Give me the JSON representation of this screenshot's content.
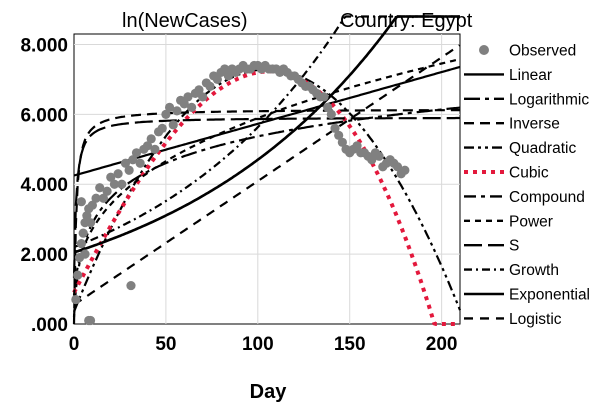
{
  "chart_data": {
    "type": "scatter",
    "title": "ln(NewCases)",
    "subtitle": "Country: Egypt",
    "xlabel": "Day",
    "ylabel": "",
    "xlim": [
      0,
      210
    ],
    "ylim": [
      0,
      8.3
    ],
    "xticks": [
      0,
      50,
      100,
      150,
      200
    ],
    "yticks": [
      0,
      2,
      4,
      6,
      8
    ],
    "xtick_labels": [
      "0",
      "50",
      "100",
      "150",
      "200"
    ],
    "ytick_labels": [
      ".000",
      "2.000",
      "4.000",
      "6.000",
      "8.000"
    ],
    "grid": true,
    "legend_position": "right",
    "observed": {
      "name": "Observed",
      "color": "#808080",
      "x": [
        1,
        2,
        3,
        4,
        5,
        6,
        7,
        8,
        9,
        10,
        12,
        14,
        16,
        18,
        20,
        22,
        24,
        26,
        28,
        30,
        32,
        34,
        36,
        38,
        40,
        42,
        44,
        46,
        48,
        50,
        52,
        54,
        56,
        58,
        60,
        62,
        64,
        66,
        68,
        70,
        72,
        74,
        76,
        78,
        80,
        82,
        84,
        86,
        88,
        90,
        92,
        94,
        96,
        98,
        100,
        102,
        104,
        106,
        108,
        110,
        112,
        114,
        116,
        118,
        120,
        122,
        124,
        126,
        128,
        130,
        132,
        134,
        136,
        138,
        140,
        142,
        144,
        146,
        148,
        150,
        152,
        154,
        156,
        158,
        160,
        162,
        164,
        166,
        168,
        170,
        172,
        174,
        176,
        178,
        180,
        4,
        6,
        8,
        9,
        31
      ],
      "y": [
        0.7,
        1.4,
        1.9,
        2.3,
        2.6,
        2.9,
        3.1,
        3.3,
        2.9,
        3.4,
        3.6,
        3.9,
        3.6,
        3.8,
        4.2,
        4.0,
        4.3,
        4.0,
        4.6,
        4.4,
        4.7,
        4.9,
        4.6,
        5.0,
        5.1,
        5.3,
        5.0,
        5.5,
        5.6,
        6.0,
        6.2,
        5.7,
        6.1,
        6.4,
        6.3,
        6.5,
        6.2,
        6.6,
        6.7,
        6.5,
        6.9,
        6.8,
        7.1,
        7.0,
        7.2,
        7.3,
        7.1,
        7.3,
        7.2,
        7.3,
        7.4,
        7.3,
        7.3,
        7.4,
        7.4,
        7.3,
        7.4,
        7.3,
        7.3,
        7.3,
        7.2,
        7.3,
        7.2,
        7.1,
        7.1,
        7.0,
        6.9,
        6.8,
        6.8,
        6.7,
        6.6,
        6.5,
        6.5,
        6.2,
        6.0,
        5.6,
        5.4,
        5.2,
        5.0,
        4.9,
        5.0,
        5.1,
        4.9,
        4.9,
        4.8,
        4.7,
        4.9,
        4.8,
        4.5,
        4.6,
        4.7,
        4.6,
        4.5,
        4.3,
        4.4,
        3.5,
        2.0,
        0.1,
        0.1,
        1.1
      ]
    },
    "models": [
      {
        "name": "Linear",
        "dash": "solid"
      },
      {
        "name": "Logarithmic",
        "dash": "dashdot-long"
      },
      {
        "name": "Inverse",
        "dash": "dash-medium"
      },
      {
        "name": "Quadratic",
        "dash": "dashdotdot"
      },
      {
        "name": "Cubic",
        "dash": "dotted",
        "color": "#e3183c"
      },
      {
        "name": "Compound",
        "dash": "dashdot"
      },
      {
        "name": "Power",
        "dash": "dash-short"
      },
      {
        "name": "S",
        "dash": "dash-long"
      },
      {
        "name": "Growth",
        "dash": "dash-dot-short"
      },
      {
        "name": "Exponential",
        "dash": "solid-heavy"
      },
      {
        "name": "Logistic",
        "dash": "dash-medium2"
      }
    ]
  }
}
